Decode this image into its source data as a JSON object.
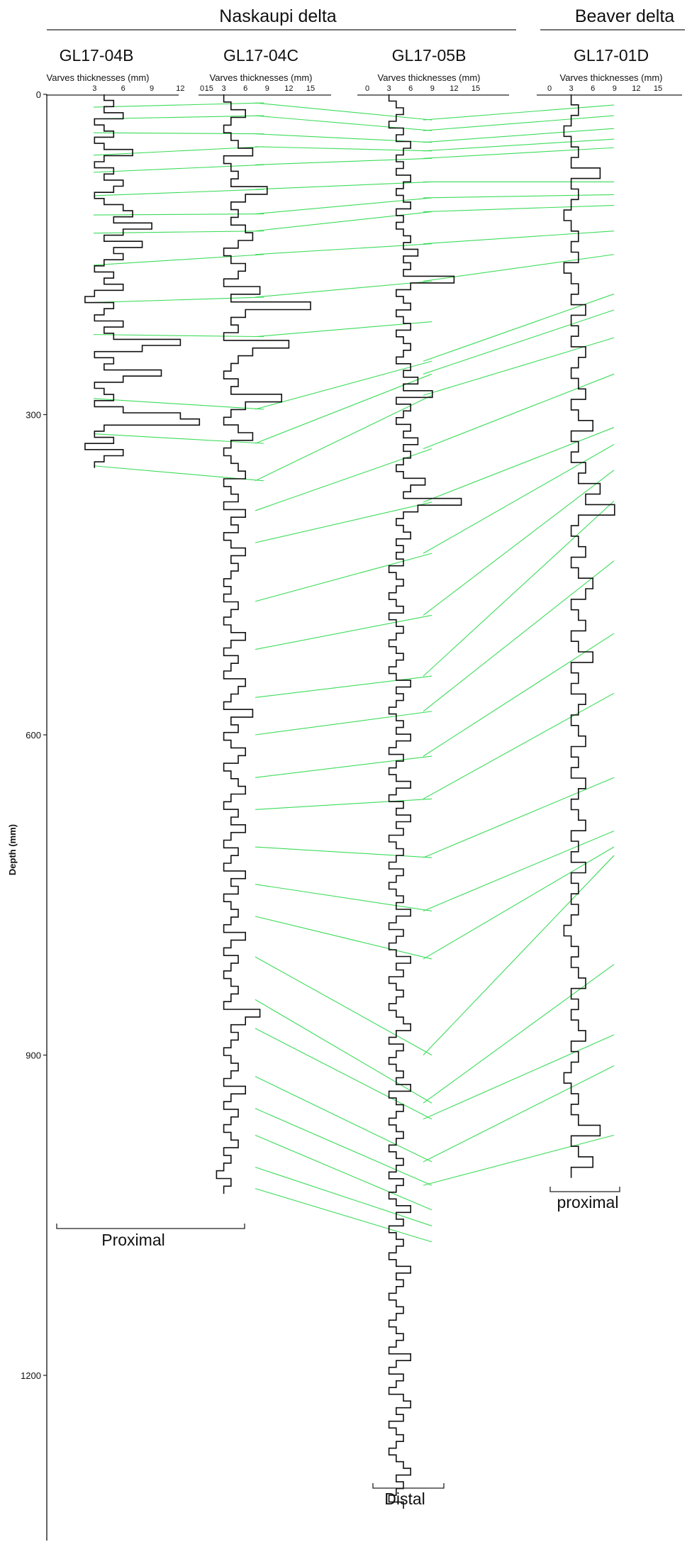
{
  "chart_data": {
    "type": "line",
    "groups": [
      {
        "label": "Naskaupi delta",
        "cores": [
          "GL17-04B",
          "GL17-04C",
          "GL17-05B"
        ]
      },
      {
        "label": "Beaver delta",
        "cores": [
          "GL17-01D"
        ]
      }
    ],
    "y_axis": {
      "label": "Depth (mm)",
      "range": [
        0,
        1340
      ],
      "ticks": [
        0,
        300,
        600,
        900,
        1200
      ],
      "inverted": true
    },
    "x_axis_label": "Varves thicknesses (mm)",
    "grid": false,
    "cores": [
      {
        "name": "GL17-04B",
        "x_ticks": [
          "3",
          "6",
          "9",
          "12",
          "15"
        ],
        "max_depth": 350,
        "profile": [
          4,
          5,
          4,
          6,
          3,
          4,
          5,
          3,
          4,
          7,
          4,
          3,
          5,
          4,
          6,
          5,
          3,
          4,
          6,
          7,
          5,
          9,
          6,
          4,
          8,
          5,
          6,
          4,
          3,
          5,
          4,
          6,
          3,
          2,
          5,
          4,
          3,
          6,
          4,
          5,
          12,
          8,
          3,
          5,
          4,
          10,
          6,
          3,
          4,
          5,
          3,
          6,
          12,
          14,
          4,
          3,
          5,
          2,
          6,
          4,
          3
        ]
      },
      {
        "name": "GL17-04C",
        "x_ticks": [
          "0",
          "3",
          "6",
          "9",
          "12",
          "15"
        ],
        "max_depth": 1030,
        "profile": [
          3,
          4,
          6,
          4,
          3,
          4,
          5,
          7,
          3,
          4,
          5,
          4,
          9,
          6,
          4,
          5,
          4,
          6,
          7,
          5,
          3,
          4,
          6,
          5,
          3,
          8,
          4,
          15,
          6,
          4,
          5,
          3,
          12,
          7,
          5,
          4,
          3,
          5,
          4,
          11,
          6,
          4,
          3,
          5,
          7,
          4,
          3,
          4,
          5,
          6,
          3,
          4,
          5,
          3,
          6,
          4,
          5,
          3,
          4,
          6,
          4,
          5,
          4,
          3,
          4,
          3,
          5,
          4,
          3,
          4,
          6,
          4,
          3,
          5,
          4,
          3,
          6,
          5,
          4,
          3,
          7,
          4,
          5,
          3,
          4,
          6,
          5,
          3,
          4,
          5,
          6,
          4,
          3,
          5,
          4,
          6,
          4,
          3,
          5,
          4,
          3,
          6,
          4,
          5,
          3,
          4,
          5,
          4,
          3,
          6,
          4,
          3,
          5,
          4,
          3,
          4,
          5,
          4,
          3,
          8,
          6,
          4,
          5,
          4,
          3,
          4,
          5,
          4,
          3,
          6,
          4,
          3,
          5,
          4,
          3,
          4,
          5,
          3,
          4,
          3,
          2,
          4,
          3
        ]
      },
      {
        "name": "GL17-05B",
        "x_ticks": [
          "0",
          "3",
          "6",
          "9",
          "12",
          "15"
        ],
        "max_depth": 1325,
        "profile": [
          3,
          4,
          5,
          4,
          3,
          5,
          4,
          6,
          5,
          4,
          5,
          4,
          6,
          5,
          4,
          5,
          6,
          4,
          5,
          4,
          5,
          6,
          5,
          7,
          5,
          6,
          5,
          12,
          6,
          4,
          5,
          6,
          4,
          5,
          6,
          4,
          5,
          6,
          5,
          4,
          6,
          5,
          7,
          5,
          9,
          4,
          6,
          5,
          4,
          6,
          5,
          7,
          5,
          6,
          5,
          4,
          5,
          8,
          6,
          5,
          13,
          7,
          5,
          4,
          5,
          6,
          4,
          5,
          4,
          5,
          3,
          4,
          5,
          4,
          3,
          4,
          5,
          3,
          4,
          5,
          4,
          3,
          4,
          5,
          4,
          3,
          4,
          6,
          4,
          5,
          4,
          3,
          4,
          5,
          4,
          6,
          4,
          3,
          5,
          4,
          3,
          4,
          6,
          4,
          3,
          5,
          4,
          6,
          4,
          5,
          3,
          4,
          5,
          4,
          3,
          5,
          4,
          3,
          4,
          5,
          4,
          6,
          4,
          3,
          5,
          4,
          3,
          4,
          6,
          4,
          5,
          3,
          4,
          5,
          4,
          3,
          4,
          5,
          6,
          4,
          3,
          5,
          4,
          3,
          4,
          5,
          4,
          6,
          3,
          4,
          5,
          4,
          3,
          4,
          5,
          4,
          3,
          4,
          5,
          4,
          3,
          5,
          4,
          3,
          4,
          6,
          4,
          5,
          3,
          4,
          5,
          4,
          3,
          4,
          6,
          4,
          5,
          4,
          3,
          4,
          5,
          4,
          3,
          4,
          5,
          4,
          3,
          6,
          4,
          3,
          5,
          4,
          3,
          5,
          6,
          4,
          5,
          3,
          4,
          5,
          4,
          3,
          4,
          5,
          6,
          4,
          5,
          4,
          3,
          5
        ]
      },
      {
        "name": "GL17-01D",
        "x_ticks": [
          "0",
          "3",
          "6",
          "9",
          "12",
          "15"
        ],
        "max_depth": 1015,
        "profile": [
          3,
          4,
          3,
          2,
          3,
          4,
          3,
          7,
          3,
          4,
          3,
          2,
          3,
          4,
          3,
          4,
          2,
          3,
          4,
          3,
          5,
          3,
          4,
          3,
          5,
          4,
          3,
          4,
          5,
          3,
          4,
          6,
          3,
          4,
          3,
          5,
          4,
          7,
          5,
          9,
          4,
          3,
          4,
          5,
          3,
          4,
          6,
          5,
          3,
          4,
          5,
          3,
          4,
          6,
          3,
          4,
          3,
          5,
          4,
          3,
          4,
          5,
          3,
          4,
          3,
          5,
          4,
          3,
          4,
          5,
          3,
          4,
          3,
          5,
          3,
          4,
          3,
          4,
          3,
          2,
          3,
          4,
          3,
          4,
          5,
          3,
          4,
          3,
          4,
          5,
          3,
          4,
          3,
          2,
          3,
          4,
          3,
          4,
          7,
          3,
          4,
          6,
          3
        ]
      }
    ],
    "tie_lines": [
      {
        "between": [
          "GL17-04B",
          "GL17-04C"
        ],
        "pairs": [
          [
            12,
            8
          ],
          [
            23,
            20
          ],
          [
            36,
            37
          ],
          [
            57,
            49
          ],
          [
            73,
            66
          ],
          [
            95,
            89
          ],
          [
            113,
            112
          ],
          [
            130,
            128
          ],
          [
            160,
            150
          ],
          [
            195,
            190
          ],
          [
            225,
            227
          ],
          [
            285,
            295
          ],
          [
            318,
            327
          ],
          [
            348,
            362
          ]
        ]
      },
      {
        "between": [
          "GL17-04C",
          "GL17-05B"
        ],
        "pairs": [
          [
            8,
            24
          ],
          [
            20,
            34
          ],
          [
            37,
            45
          ],
          [
            49,
            53
          ],
          [
            66,
            60
          ],
          [
            89,
            82
          ],
          [
            112,
            97
          ],
          [
            128,
            110
          ],
          [
            150,
            140
          ],
          [
            190,
            175
          ],
          [
            227,
            213
          ],
          [
            295,
            250
          ],
          [
            327,
            262
          ],
          [
            362,
            282
          ],
          [
            390,
            332
          ],
          [
            420,
            382
          ],
          [
            475,
            430
          ],
          [
            520,
            488
          ],
          [
            565,
            545
          ],
          [
            600,
            578
          ],
          [
            640,
            620
          ],
          [
            670,
            660
          ],
          [
            705,
            715
          ],
          [
            740,
            765
          ],
          [
            770,
            810
          ],
          [
            808,
            900
          ],
          [
            848,
            945
          ],
          [
            875,
            960
          ],
          [
            920,
            1000
          ],
          [
            950,
            1022
          ],
          [
            975,
            1045
          ],
          [
            1005,
            1060
          ],
          [
            1025,
            1075
          ]
        ]
      },
      {
        "between": [
          "GL17-05B",
          "GL17-01D"
        ],
        "pairs": [
          [
            24,
            10
          ],
          [
            34,
            20
          ],
          [
            45,
            32
          ],
          [
            53,
            42
          ],
          [
            60,
            50
          ],
          [
            82,
            82
          ],
          [
            97,
            94
          ],
          [
            110,
            104
          ],
          [
            140,
            128
          ],
          [
            175,
            150
          ],
          [
            250,
            187
          ],
          [
            262,
            202
          ],
          [
            282,
            228
          ],
          [
            332,
            262
          ],
          [
            382,
            312
          ],
          [
            430,
            328
          ],
          [
            488,
            352
          ],
          [
            545,
            381
          ],
          [
            578,
            437
          ],
          [
            620,
            505
          ],
          [
            660,
            561
          ],
          [
            715,
            640
          ],
          [
            765,
            690
          ],
          [
            810,
            705
          ],
          [
            900,
            713
          ],
          [
            945,
            815
          ],
          [
            960,
            881
          ],
          [
            1000,
            910
          ],
          [
            1022,
            975
          ]
        ]
      }
    ],
    "annotations": [
      {
        "text": "Proximal",
        "cores": [
          "GL17-04B",
          "GL17-04C"
        ]
      },
      {
        "text": "Distal",
        "cores": [
          "GL17-05B"
        ]
      },
      {
        "text": "proximal",
        "cores": [
          "GL17-01D"
        ]
      }
    ]
  }
}
